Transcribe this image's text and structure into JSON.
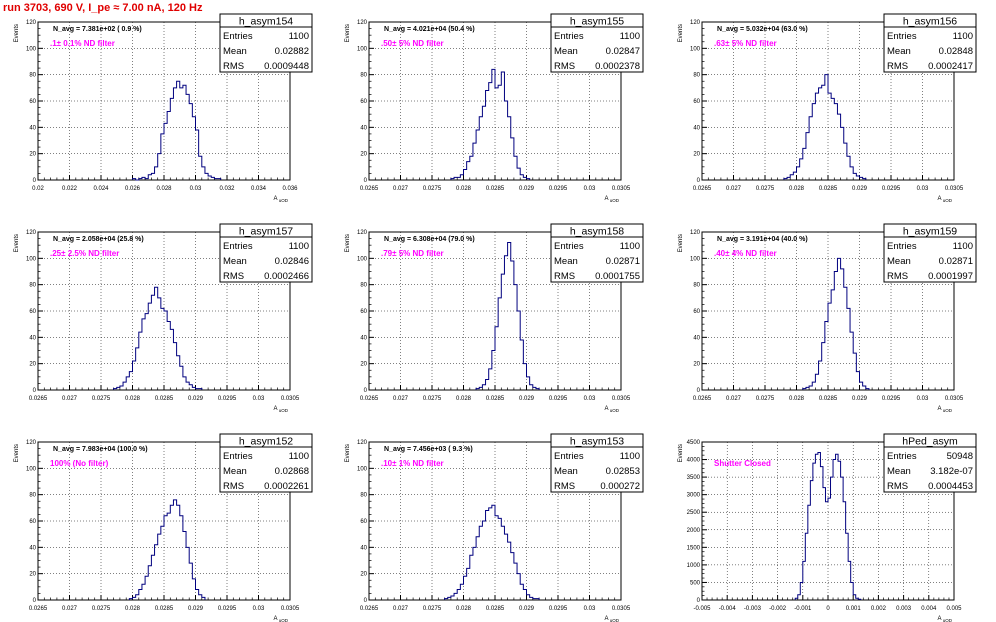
{
  "page_title": "run 3703,   690 V, I_pe ≈ 7.00 nA, 120 Hz",
  "stat_labels": {
    "entries": "Entries",
    "mean": "Mean",
    "rms": "RMS"
  },
  "colors": {
    "histogram": "#00007f",
    "annotation": "#ff00ff",
    "title": "#e00000",
    "grid": "#000000"
  },
  "chart_data": [
    {
      "type": "histogram",
      "name": "h_asym154",
      "ylabel": "Events",
      "xlabel": "A_uOD",
      "entries": "1100",
      "mean": "0.02882",
      "rms": "0.0009448",
      "navg": "N_avg = 7.381e+02 ( 0.9 %)",
      "filter": ".1± 0.1% ND filter",
      "xlim": [
        0.02,
        0.036
      ],
      "ylim": [
        0,
        120
      ],
      "xticks": [
        0.02,
        0.022,
        0.024,
        0.026,
        0.028,
        0.03,
        0.032,
        0.034,
        0.036
      ],
      "xticklabels": [
        "0.02",
        "0.022",
        "0.024",
        "0.026",
        "0.028",
        "0.03",
        "0.032",
        "0.034",
        "0.036"
      ],
      "yticks": [
        0,
        20,
        40,
        60,
        80,
        100,
        120
      ],
      "yticklabels": [
        "0",
        "20",
        "40",
        "60",
        "80",
        "100",
        "120"
      ],
      "bin_width": 0.0002,
      "bin_x": [
        0.0261,
        0.0263,
        0.0265,
        0.0267,
        0.0269,
        0.0271,
        0.0273,
        0.0275,
        0.0277,
        0.0279,
        0.0281,
        0.0283,
        0.0285,
        0.0287,
        0.0289,
        0.0291,
        0.0293,
        0.0295,
        0.0297,
        0.0299,
        0.0301,
        0.0303,
        0.0305,
        0.0307,
        0.0309,
        0.0311,
        0.0313,
        0.0315
      ],
      "counts": [
        1,
        0,
        1,
        2,
        1,
        4,
        5,
        10,
        20,
        35,
        43,
        52,
        62,
        70,
        75,
        70,
        72,
        65,
        58,
        48,
        38,
        18,
        10,
        5,
        3,
        2,
        1,
        1
      ]
    },
    {
      "type": "histogram",
      "name": "h_asym155",
      "ylabel": "Events",
      "xlabel": "A_uOD",
      "entries": "1100",
      "mean": "0.02847",
      "rms": "0.0002378",
      "navg": "N_avg = 4.021e+04 (50.4 %)",
      "filter": ".50± 5% ND filter",
      "xlim": [
        0.0265,
        0.0305
      ],
      "ylim": [
        0,
        120
      ],
      "xticks": [
        0.0265,
        0.027,
        0.0275,
        0.028,
        0.0285,
        0.029,
        0.0295,
        0.03,
        0.0305
      ],
      "xticklabels": [
        "0.0265",
        "0.027",
        "0.0275",
        "0.028",
        "0.0285",
        "0.029",
        "0.0295",
        "0.03",
        "0.0305"
      ],
      "yticks": [
        0,
        20,
        40,
        60,
        80,
        100,
        120
      ],
      "yticklabels": [
        "0",
        "20",
        "40",
        "60",
        "80",
        "100",
        "120"
      ],
      "bin_width": 5e-05,
      "bin_x": [
        0.027825,
        0.027875,
        0.027925,
        0.027975,
        0.028025,
        0.028075,
        0.028125,
        0.028175,
        0.028225,
        0.028275,
        0.028325,
        0.028375,
        0.028425,
        0.028475,
        0.028525,
        0.028575,
        0.028625,
        0.028675,
        0.028725,
        0.028775,
        0.028825,
        0.028875,
        0.028925,
        0.028975,
        0.029025
      ],
      "counts": [
        1,
        2,
        2,
        4,
        8,
        14,
        18,
        28,
        38,
        48,
        56,
        68,
        74,
        84,
        70,
        72,
        82,
        60,
        48,
        32,
        18,
        9,
        4,
        2,
        1
      ]
    },
    {
      "type": "histogram",
      "name": "h_asym156",
      "ylabel": "Events",
      "xlabel": "A_uOD",
      "entries": "1100",
      "mean": "0.02848",
      "rms": "0.0002417",
      "navg": "N_avg = 5.032e+04 (63.0 %)",
      "filter": ".63± 5% ND filter",
      "xlim": [
        0.0265,
        0.0305
      ],
      "ylim": [
        0,
        120
      ],
      "xticks": [
        0.0265,
        0.027,
        0.0275,
        0.028,
        0.0285,
        0.029,
        0.0295,
        0.03,
        0.0305
      ],
      "xticklabels": [
        "0.0265",
        "0.027",
        "0.0275",
        "0.028",
        "0.0285",
        "0.029",
        "0.0295",
        "0.03",
        "0.0305"
      ],
      "yticks": [
        0,
        20,
        40,
        60,
        80,
        100,
        120
      ],
      "yticklabels": [
        "0",
        "20",
        "40",
        "60",
        "80",
        "100",
        "120"
      ],
      "bin_width": 5e-05,
      "bin_x": [
        0.027825,
        0.027875,
        0.027925,
        0.027975,
        0.028025,
        0.028075,
        0.028125,
        0.028175,
        0.028225,
        0.028275,
        0.028325,
        0.028375,
        0.028425,
        0.028475,
        0.028525,
        0.028575,
        0.028625,
        0.028675,
        0.028725,
        0.028775,
        0.028825,
        0.028875,
        0.028925,
        0.028975,
        0.029025,
        0.029075
      ],
      "counts": [
        1,
        2,
        4,
        6,
        10,
        16,
        24,
        36,
        48,
        58,
        66,
        70,
        72,
        80,
        66,
        62,
        58,
        50,
        40,
        28,
        18,
        10,
        5,
        3,
        2,
        1
      ]
    },
    {
      "type": "histogram",
      "name": "h_asym157",
      "ylabel": "Events",
      "xlabel": "A_uOD",
      "entries": "1100",
      "mean": "0.02846",
      "rms": "0.0002466",
      "navg": "N_avg = 2.058e+04 (25.8 %)",
      "filter": ".25± 2.5% ND filter",
      "xlim": [
        0.0265,
        0.0305
      ],
      "ylim": [
        0,
        120
      ],
      "xticks": [
        0.0265,
        0.027,
        0.0275,
        0.028,
        0.0285,
        0.029,
        0.0295,
        0.03,
        0.0305
      ],
      "xticklabels": [
        "0.0265",
        "0.027",
        "0.0275",
        "0.028",
        "0.0285",
        "0.029",
        "0.0295",
        "0.03",
        "0.0305"
      ],
      "yticks": [
        0,
        20,
        40,
        60,
        80,
        100,
        120
      ],
      "yticklabels": [
        "0",
        "20",
        "40",
        "60",
        "80",
        "100",
        "120"
      ],
      "bin_width": 5e-05,
      "bin_x": [
        0.027725,
        0.027775,
        0.027825,
        0.027875,
        0.027925,
        0.027975,
        0.028025,
        0.028075,
        0.028125,
        0.028175,
        0.028225,
        0.028275,
        0.028325,
        0.028375,
        0.028425,
        0.028475,
        0.028525,
        0.028575,
        0.028625,
        0.028675,
        0.028725,
        0.028775,
        0.028825,
        0.028875,
        0.028925,
        0.028975,
        0.029025,
        0.029075
      ],
      "counts": [
        1,
        2,
        3,
        6,
        10,
        14,
        22,
        32,
        44,
        54,
        58,
        66,
        72,
        78,
        70,
        62,
        60,
        52,
        46,
        36,
        26,
        18,
        10,
        6,
        4,
        2,
        1,
        1
      ]
    },
    {
      "type": "histogram",
      "name": "h_asym158",
      "ylabel": "Events",
      "xlabel": "A_uOD",
      "entries": "1100",
      "mean": "0.02871",
      "rms": "0.0001755",
      "navg": "N_avg = 6.308e+04 (79.0 %)",
      "filter": ".79± 5% ND filter",
      "xlim": [
        0.0265,
        0.0305
      ],
      "ylim": [
        0,
        120
      ],
      "xticks": [
        0.0265,
        0.027,
        0.0275,
        0.028,
        0.0285,
        0.029,
        0.0295,
        0.03,
        0.0305
      ],
      "xticklabels": [
        "0.0265",
        "0.027",
        "0.0275",
        "0.028",
        "0.0285",
        "0.029",
        "0.0295",
        "0.03",
        "0.0305"
      ],
      "yticks": [
        0,
        20,
        40,
        60,
        80,
        100,
        120
      ],
      "yticklabels": [
        "0",
        "20",
        "40",
        "60",
        "80",
        "100",
        "120"
      ],
      "bin_width": 5e-05,
      "bin_x": [
        0.028225,
        0.028275,
        0.028325,
        0.028375,
        0.028425,
        0.028475,
        0.028525,
        0.028575,
        0.028625,
        0.028675,
        0.028725,
        0.028775,
        0.028825,
        0.028875,
        0.028925,
        0.028975,
        0.029025,
        0.029075,
        0.029125,
        0.029175
      ],
      "counts": [
        1,
        2,
        4,
        8,
        16,
        30,
        48,
        70,
        88,
        102,
        112,
        98,
        80,
        60,
        38,
        20,
        10,
        4,
        2,
        1
      ]
    },
    {
      "type": "histogram",
      "name": "h_asym159",
      "ylabel": "Events",
      "xlabel": "A_uOD",
      "entries": "1100",
      "mean": "0.02871",
      "rms": "0.0001997",
      "navg": "N_avg = 3.191e+04 (40.0 %)",
      "filter": ".40± 4% ND filter",
      "xlim": [
        0.0265,
        0.0305
      ],
      "ylim": [
        0,
        120
      ],
      "xticks": [
        0.0265,
        0.027,
        0.0275,
        0.028,
        0.0285,
        0.029,
        0.0295,
        0.03,
        0.0305
      ],
      "xticklabels": [
        "0.0265",
        "0.027",
        "0.0275",
        "0.028",
        "0.0285",
        "0.029",
        "0.0295",
        "0.03",
        "0.0305"
      ],
      "yticks": [
        0,
        20,
        40,
        60,
        80,
        100,
        120
      ],
      "yticklabels": [
        "0",
        "20",
        "40",
        "60",
        "80",
        "100",
        "120"
      ],
      "bin_width": 5e-05,
      "bin_x": [
        0.028125,
        0.028175,
        0.028225,
        0.028275,
        0.028325,
        0.028375,
        0.028425,
        0.028475,
        0.028525,
        0.028575,
        0.028625,
        0.028675,
        0.028725,
        0.028775,
        0.028825,
        0.028875,
        0.028925,
        0.028975,
        0.029025,
        0.029075,
        0.029125
      ],
      "counts": [
        1,
        2,
        3,
        6,
        12,
        22,
        36,
        52,
        66,
        76,
        90,
        100,
        92,
        78,
        62,
        44,
        28,
        14,
        6,
        3,
        1
      ]
    },
    {
      "type": "histogram",
      "name": "h_asym152",
      "ylabel": "Events",
      "xlabel": "A_uOD",
      "entries": "1100",
      "mean": "0.02868",
      "rms": "0.0002261",
      "navg": "N_avg = 7.983e+04 (100.0 %)",
      "filter": "100% (No filter)",
      "xlim": [
        0.0265,
        0.0305
      ],
      "ylim": [
        0,
        120
      ],
      "xticks": [
        0.0265,
        0.027,
        0.0275,
        0.028,
        0.0285,
        0.029,
        0.0295,
        0.03,
        0.0305
      ],
      "xticklabels": [
        "0.0265",
        "0.027",
        "0.0275",
        "0.028",
        "0.0285",
        "0.029",
        "0.0295",
        "0.03",
        "0.0305"
      ],
      "yticks": [
        0,
        20,
        40,
        60,
        80,
        100,
        120
      ],
      "yticklabels": [
        "0",
        "20",
        "40",
        "60",
        "80",
        "100",
        "120"
      ],
      "bin_width": 5e-05,
      "bin_x": [
        0.027975,
        0.028025,
        0.028075,
        0.028125,
        0.028175,
        0.028225,
        0.028275,
        0.028325,
        0.028375,
        0.028425,
        0.028475,
        0.028525,
        0.028575,
        0.028625,
        0.028675,
        0.028725,
        0.028775,
        0.028825,
        0.028875,
        0.028925,
        0.028975,
        0.029025,
        0.029075,
        0.029125
      ],
      "counts": [
        1,
        2,
        4,
        8,
        12,
        18,
        26,
        34,
        42,
        50,
        56,
        64,
        66,
        72,
        76,
        72,
        64,
        52,
        40,
        28,
        16,
        8,
        4,
        2
      ]
    },
    {
      "type": "histogram",
      "name": "h_asym153",
      "ylabel": "Events",
      "xlabel": "A_uOD",
      "entries": "1100",
      "mean": "0.02853",
      "rms": "0.000272",
      "navg": "N_avg = 7.456e+03 ( 9.3 %)",
      "filter": ".10± 1% ND filter",
      "xlim": [
        0.0265,
        0.0305
      ],
      "ylim": [
        0,
        120
      ],
      "xticks": [
        0.0265,
        0.027,
        0.0275,
        0.028,
        0.0285,
        0.029,
        0.0295,
        0.03,
        0.0305
      ],
      "xticklabels": [
        "0.0265",
        "0.027",
        "0.0275",
        "0.028",
        "0.0285",
        "0.029",
        "0.0295",
        "0.03",
        "0.0305"
      ],
      "yticks": [
        0,
        20,
        40,
        60,
        80,
        100,
        120
      ],
      "yticklabels": [
        "0",
        "20",
        "40",
        "60",
        "80",
        "100",
        "120"
      ],
      "bin_width": 5e-05,
      "bin_x": [
        0.027725,
        0.027775,
        0.027825,
        0.027875,
        0.027925,
        0.027975,
        0.028025,
        0.028075,
        0.028125,
        0.028175,
        0.028225,
        0.028275,
        0.028325,
        0.028375,
        0.028425,
        0.028475,
        0.028525,
        0.028575,
        0.028625,
        0.028675,
        0.028725,
        0.028775,
        0.028825,
        0.028875,
        0.028925,
        0.028975,
        0.029025,
        0.029075,
        0.029125,
        0.029175
      ],
      "counts": [
        1,
        2,
        3,
        5,
        8,
        12,
        18,
        24,
        34,
        40,
        48,
        56,
        60,
        68,
        70,
        72,
        64,
        62,
        56,
        50,
        44,
        36,
        28,
        20,
        12,
        8,
        4,
        2,
        1,
        1
      ]
    },
    {
      "type": "histogram",
      "name": "hPed_asym",
      "ylabel": "Events",
      "xlabel": "A_uOD",
      "entries": "50948",
      "mean": "3.182e-07",
      "rms": "0.0004453",
      "navg": "",
      "filter": "Shutter Closed",
      "xlim": [
        -0.005,
        0.005
      ],
      "ylim": [
        0,
        4500
      ],
      "xticks": [
        -0.005,
        -0.004,
        -0.003,
        -0.002,
        -0.001,
        0,
        0.001,
        0.002,
        0.003,
        0.004,
        0.005
      ],
      "xticklabels": [
        "-0.005",
        "-0.004",
        "-0.003",
        "-0.002",
        "-0.001",
        "0",
        "0.001",
        "0.002",
        "0.003",
        "0.004",
        "0.005"
      ],
      "yticks": [
        0,
        500,
        1000,
        1500,
        2000,
        2500,
        3000,
        3500,
        4000,
        4500
      ],
      "yticklabels": [
        "0",
        "500",
        "1000",
        "1500",
        "2000",
        "2500",
        "3000",
        "3500",
        "4000",
        "4500"
      ],
      "bin_width": 0.0001,
      "bin_x": [
        -0.00125,
        -0.00115,
        -0.00105,
        -0.00095,
        -0.00085,
        -0.00075,
        -0.00065,
        -0.00055,
        -0.00045,
        -0.00035,
        -0.00025,
        -0.00015,
        -5e-05,
        5e-05,
        0.00015,
        0.00025,
        0.00035,
        0.00045,
        0.00055,
        0.00065,
        0.00075,
        0.00085,
        0.00095,
        0.00105,
        0.00115,
        0.00125
      ],
      "counts": [
        50,
        150,
        500,
        1100,
        1900,
        2700,
        3400,
        3900,
        4150,
        4200,
        3800,
        3200,
        2800,
        2900,
        3500,
        4000,
        4150,
        3950,
        3500,
        2800,
        1900,
        1100,
        500,
        150,
        50,
        20
      ]
    }
  ]
}
